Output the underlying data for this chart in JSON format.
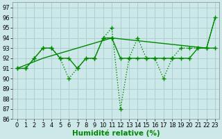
{
  "xlabel": "Humidité relative (%)",
  "bg_color": "#cce8e8",
  "grid_color": "#aacccc",
  "line_color": "#008800",
  "xlim": [
    -0.5,
    23.5
  ],
  "ylim": [
    86,
    97.5
  ],
  "xticks": [
    0,
    1,
    2,
    3,
    4,
    5,
    6,
    7,
    8,
    9,
    10,
    11,
    12,
    13,
    14,
    15,
    16,
    17,
    18,
    19,
    20,
    21,
    22,
    23
  ],
  "yticks": [
    86,
    87,
    88,
    89,
    90,
    91,
    92,
    93,
    94,
    95,
    96,
    97
  ],
  "line1_x": [
    0,
    1,
    2,
    3,
    4,
    5,
    6,
    7,
    8,
    9,
    10,
    11,
    12,
    13,
    14,
    15,
    16,
    17,
    18,
    19,
    20,
    21,
    22,
    23
  ],
  "line1_y": [
    91,
    91,
    92,
    93,
    93,
    92,
    92,
    91,
    92,
    92,
    94,
    94,
    92,
    92,
    92,
    92,
    92,
    92,
    92,
    92,
    92,
    93,
    93,
    93
  ],
  "line2_x": [
    0,
    1,
    2,
    3,
    4,
    5,
    6,
    7,
    8,
    9,
    10,
    11,
    12,
    13,
    14,
    15,
    16,
    17,
    18,
    19,
    20,
    21,
    22,
    23
  ],
  "line2_y": [
    91,
    91,
    92,
    93,
    93,
    92,
    90,
    91,
    92,
    92,
    94,
    95,
    87,
    92,
    94,
    92,
    92,
    90,
    92,
    93,
    93,
    93,
    93,
    96
  ],
  "line3_x": [
    0,
    3,
    11,
    22,
    23
  ],
  "line3_y": [
    91,
    92,
    94,
    93,
    96
  ],
  "marker": "+",
  "markersize": 4,
  "markeredgewidth": 1.0,
  "linewidth": 1.0,
  "tick_fontsize": 6,
  "xlabel_fontsize": 7.5,
  "xlabel_bold": true
}
